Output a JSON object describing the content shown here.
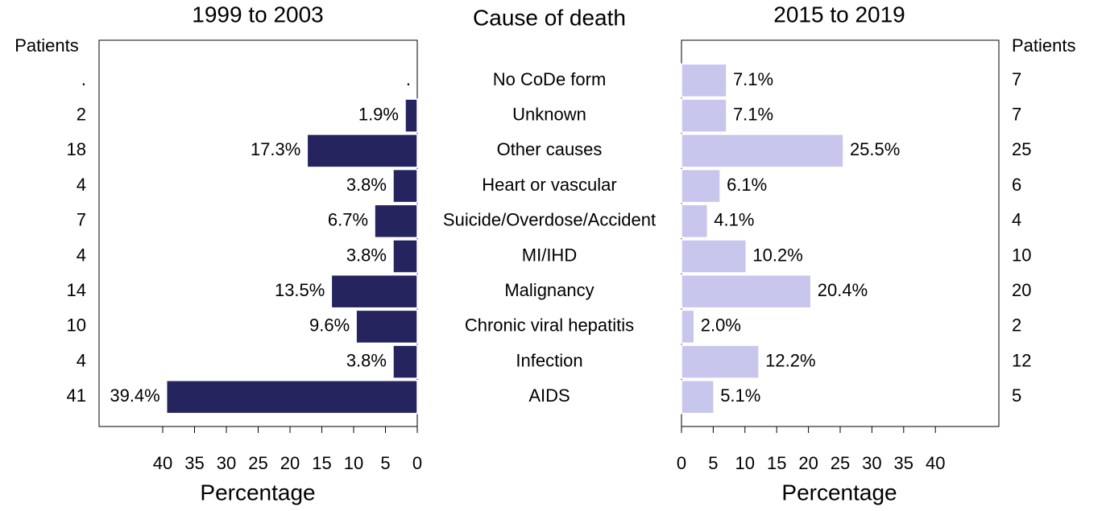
{
  "chart_data": {
    "type": "butterfly",
    "title": "Cause of death",
    "categories": [
      "No CoDe form",
      "Unknown",
      "Other causes",
      "Heart or vascular",
      "Suicide/Overdose/Accident",
      "MI/IHD",
      "Malignancy",
      "Chronic viral hepatitis",
      "Infection",
      "AIDS"
    ],
    "panels": [
      {
        "title": "1999 to 2003",
        "xlabel": "Percentage",
        "patients_label": "Patients",
        "color": "#25245e",
        "values": [
          null,
          1.9,
          17.3,
          3.8,
          6.7,
          3.8,
          13.5,
          9.6,
          3.8,
          39.4
        ],
        "value_labels": [
          ".",
          "1.9%",
          "17.3%",
          "3.8%",
          "6.7%",
          "3.8%",
          "13.5%",
          "9.6%",
          "3.8%",
          "39.4%"
        ],
        "patients": [
          ".",
          2,
          18,
          4,
          7,
          4,
          14,
          10,
          4,
          41
        ],
        "xlim": [
          0,
          50
        ],
        "xticks": [
          0,
          5,
          10,
          15,
          20,
          25,
          30,
          35,
          40
        ]
      },
      {
        "title": "2015 to 2019",
        "xlabel": "Percentage",
        "patients_label": "Patients",
        "color": "#c8c6ec",
        "values": [
          7.1,
          7.1,
          25.5,
          6.1,
          4.1,
          10.2,
          20.4,
          2.0,
          12.2,
          5.1
        ],
        "value_labels": [
          "7.1%",
          "7.1%",
          "25.5%",
          "6.1%",
          "4.1%",
          "10.2%",
          "20.4%",
          "2.0%",
          "12.2%",
          "5.1%"
        ],
        "patients": [
          7,
          7,
          25,
          6,
          4,
          10,
          20,
          2,
          12,
          5
        ],
        "xlim": [
          0,
          50
        ],
        "xticks": [
          0,
          5,
          10,
          15,
          20,
          25,
          30,
          35,
          40
        ]
      }
    ]
  }
}
